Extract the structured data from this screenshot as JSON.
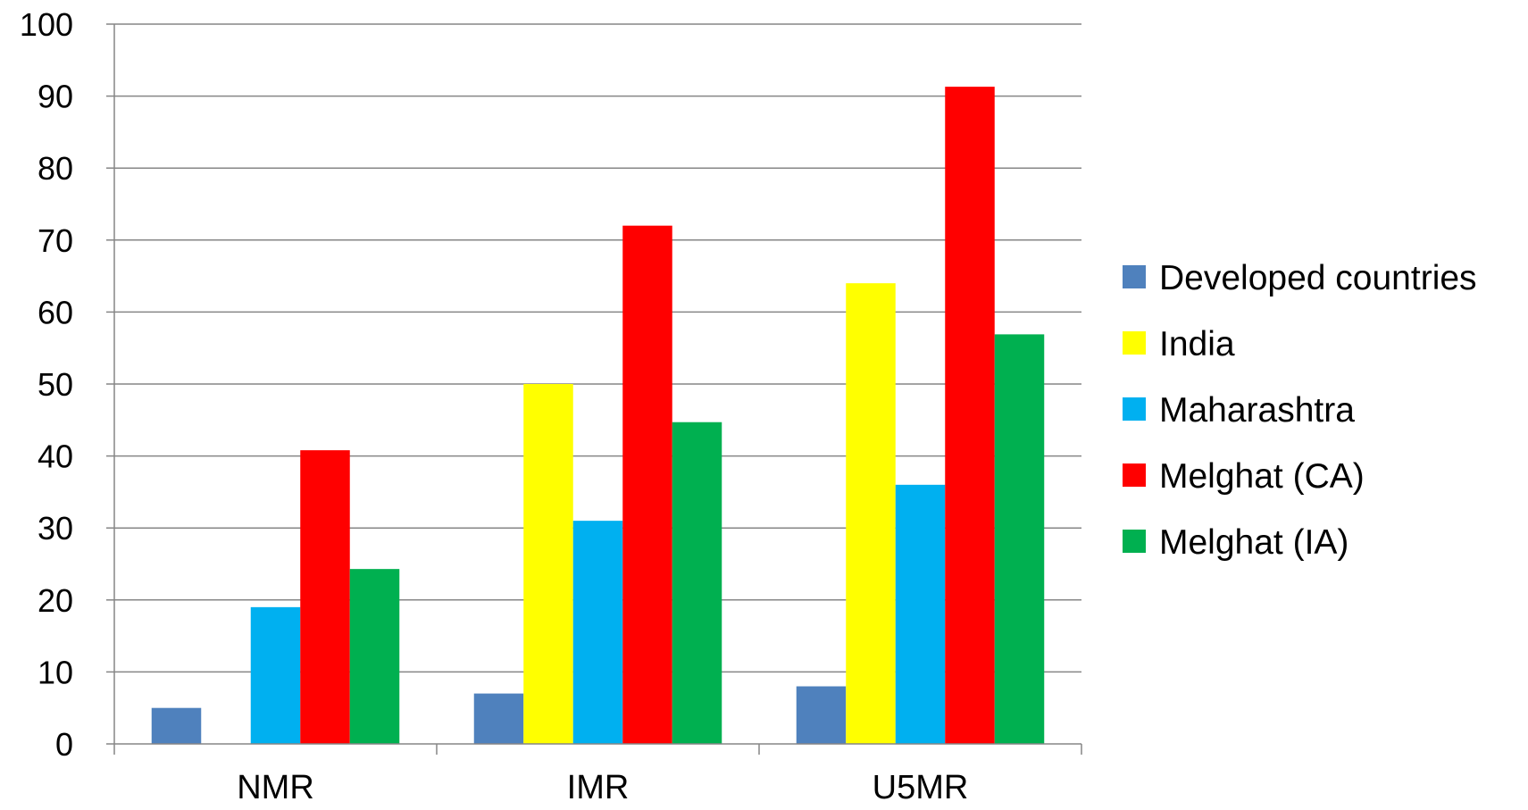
{
  "chart_data": {
    "type": "bar",
    "title": "",
    "xlabel": "",
    "ylabel": "",
    "categories": [
      "NMR",
      "IMR",
      "U5MR"
    ],
    "ylim": [
      0,
      100
    ],
    "yticks": [
      0,
      10,
      20,
      30,
      40,
      50,
      60,
      70,
      80,
      90,
      100
    ],
    "grid": true,
    "legend": "right",
    "series": [
      {
        "name": "Developed countries",
        "color": "#4f81bd",
        "values": [
          5,
          7,
          8
        ]
      },
      {
        "name": "India",
        "color": "#ffff00",
        "values": [
          0,
          50,
          64
        ]
      },
      {
        "name": "Maharashtra",
        "color": "#00b0f0",
        "values": [
          19,
          31,
          36
        ]
      },
      {
        "name": "Melghat (CA)",
        "color": "#ff0000",
        "values": [
          40.8,
          72,
          91.3
        ]
      },
      {
        "name": "Melghat (IA)",
        "color": "#00b050",
        "values": [
          24.3,
          44.7,
          56.9
        ]
      }
    ]
  }
}
